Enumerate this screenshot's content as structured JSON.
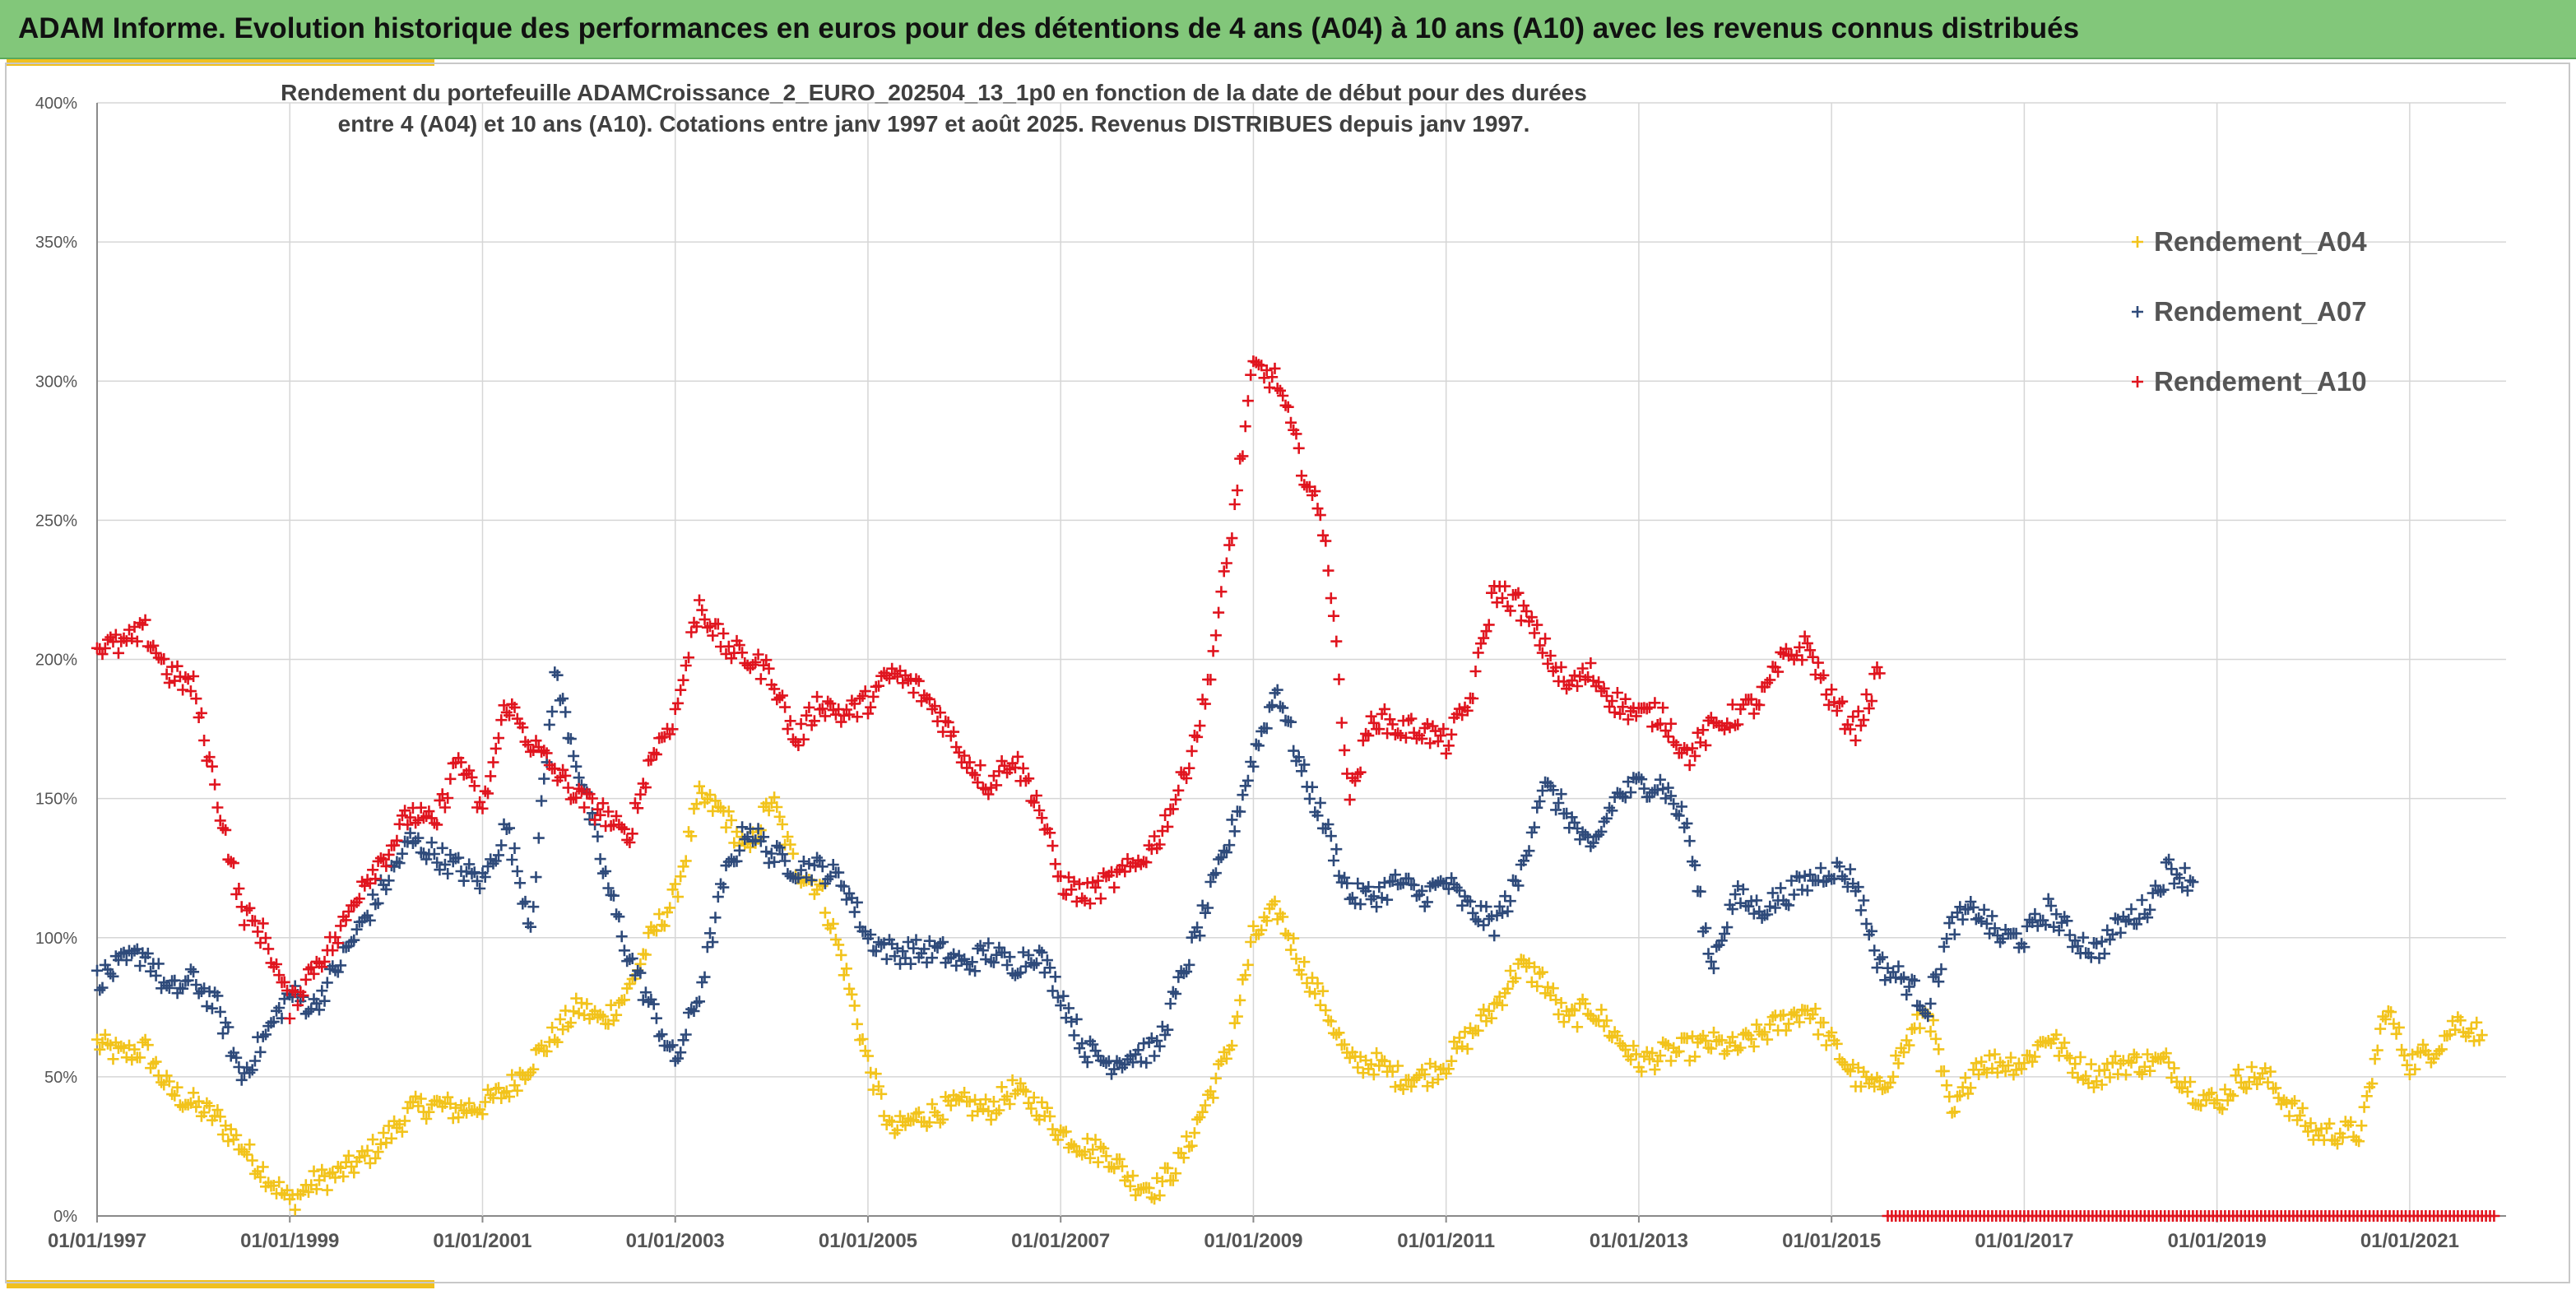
{
  "banner": {
    "title": "ADAM Informe. Evolution historique des performances en euros pour des détentions de 4 ans (A04) à 10 ans (A10) avec les revenus connus distribués"
  },
  "colors": {
    "banner_bg": "#82c77a",
    "accent": "#f0c020",
    "A04": "#f2c31b",
    "A07": "#2e4a7a",
    "A10": "#e0141e",
    "grid": "#d6d6d6"
  },
  "chart_data": {
    "type": "scatter",
    "title_line1": "Rendement du portefeuille ADAMCroissance_2_EURO_202504_13_1p0  en fonction de la date de début pour des durées",
    "title_line2": "entre 4 (A04) et 10 ans (A10). Cotations entre janv 1997 et août 2025. Revenus DISTRIBUES depuis janv 1997.",
    "marker": "+",
    "xlabel": "",
    "ylabel": "",
    "xlim": [
      "1997-01-01",
      "2022-01-01"
    ],
    "ylim": [
      0,
      4.0
    ],
    "y_ticks": [
      0,
      0.5,
      1.0,
      1.5,
      2.0,
      2.5,
      3.0,
      3.5,
      4.0
    ],
    "y_tick_labels": [
      "0%",
      "50%",
      "100%",
      "150%",
      "200%",
      "250%",
      "300%",
      "350%",
      "400%"
    ],
    "x_ticks": [
      "1997-01-01",
      "1999-01-01",
      "2001-01-01",
      "2003-01-01",
      "2005-01-01",
      "2007-01-01",
      "2009-01-01",
      "2011-01-01",
      "2013-01-01",
      "2015-01-01",
      "2017-01-01",
      "2019-01-01",
      "2021-01-01"
    ],
    "x_tick_labels": [
      "01/01/1997",
      "01/01/1999",
      "01/01/2001",
      "01/01/2003",
      "01/01/2005",
      "01/01/2007",
      "01/01/2009",
      "01/01/2011",
      "01/01/2013",
      "01/01/2015",
      "01/01/2017",
      "01/01/2019",
      "01/01/2021"
    ],
    "grid": true,
    "legend_position": "top-right",
    "series": [
      {
        "name": "Rendement_A04",
        "color": "#f2c31b",
        "x": [
          "1997-01",
          "1997-04",
          "1997-07",
          "1997-10",
          "1998-01",
          "1998-04",
          "1998-07",
          "1998-10",
          "1999-01",
          "1999-04",
          "1999-07",
          "1999-10",
          "2000-01",
          "2000-04",
          "2000-07",
          "2000-10",
          "2001-01",
          "2001-04",
          "2001-07",
          "2001-10",
          "2002-01",
          "2002-04",
          "2002-07",
          "2002-10",
          "2003-01",
          "2003-04",
          "2003-07",
          "2003-10",
          "2004-01",
          "2004-04",
          "2004-07",
          "2004-10",
          "2005-01",
          "2005-04",
          "2005-07",
          "2005-10",
          "2006-01",
          "2006-04",
          "2006-07",
          "2006-10",
          "2007-01",
          "2007-04",
          "2007-07",
          "2007-10",
          "2008-01",
          "2008-04",
          "2008-07",
          "2008-10",
          "2009-01",
          "2009-04",
          "2009-07",
          "2009-10",
          "2010-01",
          "2010-04",
          "2010-07",
          "2010-10",
          "2011-01",
          "2011-04",
          "2011-07",
          "2011-10",
          "2012-01",
          "2012-04",
          "2012-07",
          "2012-10",
          "2013-01",
          "2013-04",
          "2013-07",
          "2013-10",
          "2014-01",
          "2014-04",
          "2014-07",
          "2014-10",
          "2015-01",
          "2015-04",
          "2015-07",
          "2015-10",
          "2016-01",
          "2016-04",
          "2016-07",
          "2016-10",
          "2017-01",
          "2017-04",
          "2017-07",
          "2017-10",
          "2018-01",
          "2018-04",
          "2018-07",
          "2018-10",
          "2019-01",
          "2019-04",
          "2019-07",
          "2019-10",
          "2020-01",
          "2020-04",
          "2020-07",
          "2020-10",
          "2021-01",
          "2021-04",
          "2021-07",
          "2021-10"
        ],
        "values": [
          0.62,
          0.58,
          0.6,
          0.45,
          0.4,
          0.35,
          0.25,
          0.15,
          0.05,
          0.12,
          0.15,
          0.2,
          0.28,
          0.38,
          0.4,
          0.38,
          0.4,
          0.45,
          0.55,
          0.65,
          0.75,
          0.7,
          0.8,
          1.0,
          1.15,
          1.5,
          1.45,
          1.3,
          1.5,
          1.25,
          1.18,
          0.9,
          0.55,
          0.3,
          0.35,
          0.38,
          0.4,
          0.38,
          0.45,
          0.4,
          0.3,
          0.25,
          0.22,
          0.12,
          0.1,
          0.2,
          0.4,
          0.6,
          1.0,
          1.1,
          0.9,
          0.75,
          0.55,
          0.55,
          0.5,
          0.5,
          0.55,
          0.65,
          0.75,
          0.9,
          0.85,
          0.7,
          0.75,
          0.65,
          0.55,
          0.58,
          0.6,
          0.62,
          0.6,
          0.65,
          0.7,
          0.75,
          0.62,
          0.5,
          0.45,
          0.6,
          0.75,
          0.35,
          0.55,
          0.55,
          0.55,
          0.65,
          0.55,
          0.5,
          0.55,
          0.55,
          0.55,
          0.45,
          0.4,
          0.5,
          0.5,
          0.4,
          0.3,
          0.3,
          0.3,
          0.75,
          0.55,
          0.6,
          0.7,
          0.65
        ]
      },
      {
        "name": "Rendement_A07",
        "color": "#2e4a7a",
        "x": [
          "1997-01",
          "1997-04",
          "1997-07",
          "1997-10",
          "1998-01",
          "1998-04",
          "1998-07",
          "1998-10",
          "1999-01",
          "1999-04",
          "1999-07",
          "1999-10",
          "2000-01",
          "2000-04",
          "2000-07",
          "2000-10",
          "2001-01",
          "2001-04",
          "2001-07",
          "2001-10",
          "2002-01",
          "2002-04",
          "2002-07",
          "2002-10",
          "2003-01",
          "2003-04",
          "2003-07",
          "2003-10",
          "2004-01",
          "2004-04",
          "2004-07",
          "2004-10",
          "2005-01",
          "2005-04",
          "2005-07",
          "2005-10",
          "2006-01",
          "2006-04",
          "2006-07",
          "2006-10",
          "2007-01",
          "2007-04",
          "2007-07",
          "2007-10",
          "2008-01",
          "2008-04",
          "2008-07",
          "2008-10",
          "2009-01",
          "2009-04",
          "2009-07",
          "2009-10",
          "2010-01",
          "2010-04",
          "2010-07",
          "2010-10",
          "2011-01",
          "2011-04",
          "2011-07",
          "2011-10",
          "2012-01",
          "2012-04",
          "2012-07",
          "2012-10",
          "2013-01",
          "2013-04",
          "2013-07",
          "2013-10",
          "2014-01",
          "2014-04",
          "2014-07",
          "2014-10",
          "2015-01",
          "2015-04",
          "2015-07",
          "2015-10",
          "2016-01",
          "2016-04",
          "2016-07",
          "2016-10",
          "2017-01",
          "2017-04",
          "2017-07",
          "2017-10",
          "2018-01",
          "2018-04",
          "2018-07",
          "2018-10"
        ],
        "values": [
          0.85,
          0.9,
          0.95,
          0.8,
          0.85,
          0.75,
          0.5,
          0.65,
          0.8,
          0.75,
          0.9,
          1.05,
          1.2,
          1.35,
          1.3,
          1.25,
          1.2,
          1.4,
          1.05,
          1.95,
          1.6,
          1.25,
          0.95,
          0.75,
          0.55,
          0.8,
          1.2,
          1.4,
          1.3,
          1.25,
          1.25,
          1.2,
          1.0,
          0.95,
          0.95,
          0.95,
          0.9,
          0.95,
          0.9,
          0.95,
          0.8,
          0.6,
          0.55,
          0.58,
          0.6,
          0.85,
          1.1,
          1.35,
          1.65,
          1.9,
          1.6,
          1.4,
          1.15,
          1.15,
          1.2,
          1.15,
          1.2,
          1.1,
          1.05,
          1.2,
          1.55,
          1.45,
          1.3,
          1.5,
          1.55,
          1.55,
          1.4,
          0.9,
          1.15,
          1.1,
          1.15,
          1.2,
          1.25,
          1.2,
          0.9,
          0.85,
          0.75,
          1.05,
          1.1,
          1.0,
          1.0,
          1.1,
          1.0,
          0.95,
          1.05,
          1.1,
          1.25,
          1.2
        ]
      },
      {
        "name": "Rendement_A10",
        "color": "#e0141e",
        "x": [
          "1997-01",
          "1997-04",
          "1997-07",
          "1997-10",
          "1998-01",
          "1998-04",
          "1998-07",
          "1998-10",
          "1999-01",
          "1999-04",
          "1999-07",
          "1999-10",
          "2000-01",
          "2000-04",
          "2000-07",
          "2000-10",
          "2001-01",
          "2001-04",
          "2001-07",
          "2001-10",
          "2002-01",
          "2002-04",
          "2002-07",
          "2002-10",
          "2003-01",
          "2003-04",
          "2003-07",
          "2003-10",
          "2004-01",
          "2004-04",
          "2004-07",
          "2004-10",
          "2005-01",
          "2005-04",
          "2005-07",
          "2005-10",
          "2006-01",
          "2006-04",
          "2006-07",
          "2006-10",
          "2007-01",
          "2007-04",
          "2007-07",
          "2007-10",
          "2008-01",
          "2008-04",
          "2008-07",
          "2008-10",
          "2009-01",
          "2009-04",
          "2009-07",
          "2009-10",
          "2010-01",
          "2010-04",
          "2010-07",
          "2010-10",
          "2011-01",
          "2011-04",
          "2011-07",
          "2011-10",
          "2012-01",
          "2012-04",
          "2012-07",
          "2012-10",
          "2013-01",
          "2013-04",
          "2013-07",
          "2013-10",
          "2014-01",
          "2014-04",
          "2014-07",
          "2014-10",
          "2015-01",
          "2015-04",
          "2015-07"
        ],
        "values": [
          2.05,
          2.05,
          2.1,
          1.95,
          1.9,
          1.5,
          1.1,
          1.0,
          0.75,
          0.9,
          1.0,
          1.2,
          1.3,
          1.45,
          1.4,
          1.65,
          1.45,
          1.85,
          1.7,
          1.6,
          1.5,
          1.45,
          1.35,
          1.65,
          1.8,
          2.2,
          2.05,
          2.0,
          1.95,
          1.7,
          1.85,
          1.8,
          1.85,
          1.95,
          1.9,
          1.8,
          1.65,
          1.55,
          1.65,
          1.5,
          1.2,
          1.15,
          1.2,
          1.25,
          1.35,
          1.55,
          1.85,
          2.4,
          3.05,
          3.0,
          2.7,
          2.45,
          1.5,
          1.8,
          1.75,
          1.75,
          1.7,
          1.85,
          2.25,
          2.2,
          2.05,
          1.9,
          1.95,
          1.85,
          1.8,
          1.8,
          1.65,
          1.75,
          1.8,
          1.85,
          2.0,
          2.05,
          1.85,
          1.75,
          1.95
        ]
      },
      {
        "name": "",
        "color": "#e0141e",
        "x_range": [
          "2015-08",
          "2021-12"
        ],
        "value": 0.0
      }
    ]
  }
}
